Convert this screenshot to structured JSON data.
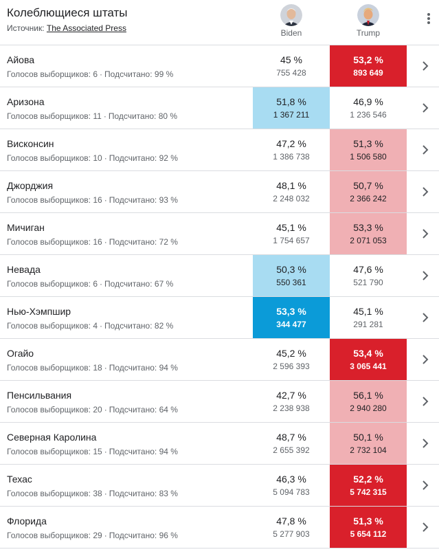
{
  "header": {
    "title": "Колеблющиеся штаты",
    "source_label": "Источник:",
    "source_link": "The Associated Press"
  },
  "candidates": {
    "biden": {
      "name": "Biden",
      "icon": "biden-portrait-icon"
    },
    "trump": {
      "name": "Trump",
      "icon": "trump-portrait-icon"
    }
  },
  "labels": {
    "electors": "Голосов выборщиков:",
    "counted": "Подсчитано:"
  },
  "colors": {
    "biden_winning": "#0b9bd8",
    "biden_leading": "#a8dcf2",
    "trump_winning": "#d9202b",
    "trump_leading": "#f0b0b4"
  },
  "states": [
    {
      "name": "Айова",
      "electors": "6",
      "counted": "99 %",
      "biden_pct": "45 %",
      "biden_votes": "755 428",
      "biden_style": "none",
      "trump_pct": "53,2 %",
      "trump_votes": "893 649",
      "trump_style": "dark-red"
    },
    {
      "name": "Аризона",
      "electors": "11",
      "counted": "80 %",
      "biden_pct": "51,8 %",
      "biden_votes": "1 367 211",
      "biden_style": "light-blue",
      "trump_pct": "46,9 %",
      "trump_votes": "1 236 546",
      "trump_style": "none"
    },
    {
      "name": "Висконсин",
      "electors": "10",
      "counted": "92 %",
      "biden_pct": "47,2 %",
      "biden_votes": "1 386 738",
      "biden_style": "none",
      "trump_pct": "51,3 %",
      "trump_votes": "1 506 580",
      "trump_style": "light-red"
    },
    {
      "name": "Джорджия",
      "electors": "16",
      "counted": "93 %",
      "biden_pct": "48,1 %",
      "biden_votes": "2 248 032",
      "biden_style": "none",
      "trump_pct": "50,7 %",
      "trump_votes": "2 366 242",
      "trump_style": "light-red"
    },
    {
      "name": "Мичиган",
      "electors": "16",
      "counted": "72 %",
      "biden_pct": "45,1 %",
      "biden_votes": "1 754 657",
      "biden_style": "none",
      "trump_pct": "53,3 %",
      "trump_votes": "2 071 053",
      "trump_style": "light-red"
    },
    {
      "name": "Невада",
      "electors": "6",
      "counted": "67 %",
      "biden_pct": "50,3 %",
      "biden_votes": "550 361",
      "biden_style": "light-blue",
      "trump_pct": "47,6 %",
      "trump_votes": "521 790",
      "trump_style": "none"
    },
    {
      "name": "Нью-Хэмпшир",
      "electors": "4",
      "counted": "82 %",
      "biden_pct": "53,3 %",
      "biden_votes": "344 477",
      "biden_style": "dark-blue",
      "trump_pct": "45,1 %",
      "trump_votes": "291 281",
      "trump_style": "none"
    },
    {
      "name": "Огайо",
      "electors": "18",
      "counted": "94 %",
      "biden_pct": "45,2 %",
      "biden_votes": "2 596 393",
      "biden_style": "none",
      "trump_pct": "53,4 %",
      "trump_votes": "3 065 441",
      "trump_style": "dark-red"
    },
    {
      "name": "Пенсильвания",
      "electors": "20",
      "counted": "64 %",
      "biden_pct": "42,7 %",
      "biden_votes": "2 238 938",
      "biden_style": "none",
      "trump_pct": "56,1 %",
      "trump_votes": "2 940 280",
      "trump_style": "light-red"
    },
    {
      "name": "Северная Каролина",
      "electors": "15",
      "counted": "94 %",
      "biden_pct": "48,7 %",
      "biden_votes": "2 655 392",
      "biden_style": "none",
      "trump_pct": "50,1 %",
      "trump_votes": "2 732 104",
      "trump_style": "light-red"
    },
    {
      "name": "Техас",
      "electors": "38",
      "counted": "83 %",
      "biden_pct": "46,3 %",
      "biden_votes": "5 094 783",
      "biden_style": "none",
      "trump_pct": "52,2 %",
      "trump_votes": "5 742 315",
      "trump_style": "dark-red"
    },
    {
      "name": "Флорида",
      "electors": "29",
      "counted": "96 %",
      "biden_pct": "47,8 %",
      "biden_votes": "5 277 903",
      "biden_style": "none",
      "trump_pct": "51,3 %",
      "trump_votes": "5 654 112",
      "trump_style": "dark-red"
    }
  ]
}
